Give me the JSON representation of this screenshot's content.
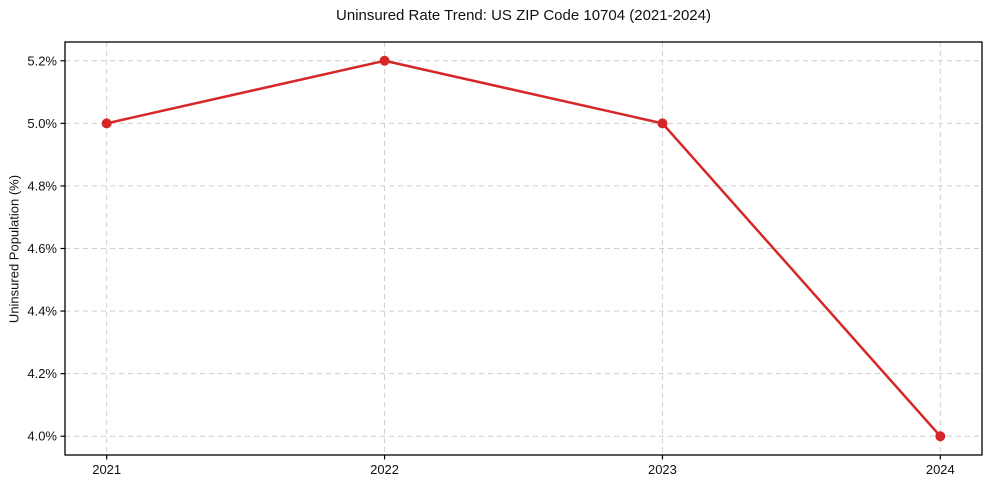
{
  "chart_data": {
    "type": "line",
    "title": "Uninsured Rate Trend: US ZIP Code 10704 (2021-2024)",
    "xlabel": "",
    "ylabel": "Uninsured Population (%)",
    "x": [
      2021,
      2022,
      2023,
      2024
    ],
    "x_tick_labels": [
      "2021",
      "2022",
      "2023",
      "2024"
    ],
    "series": [
      {
        "name": "Uninsured rate",
        "values": [
          5.0,
          5.2,
          5.0,
          4.0
        ]
      }
    ],
    "y_ticks": [
      4.0,
      4.2,
      4.4,
      4.6,
      4.8,
      5.0,
      5.2
    ],
    "y_tick_labels": [
      "4.0%",
      "4.2%",
      "4.4%",
      "4.6%",
      "4.8%",
      "5.0%",
      "5.2%"
    ],
    "xlim": [
      2020.85,
      2024.15
    ],
    "ylim": [
      3.94,
      5.26
    ],
    "grid": true,
    "legend": "none",
    "line_color": "#d62728",
    "marker": "circle",
    "grid_color": "#cfcfcf",
    "spine_color": "#000000",
    "text_color": "#111111"
  }
}
